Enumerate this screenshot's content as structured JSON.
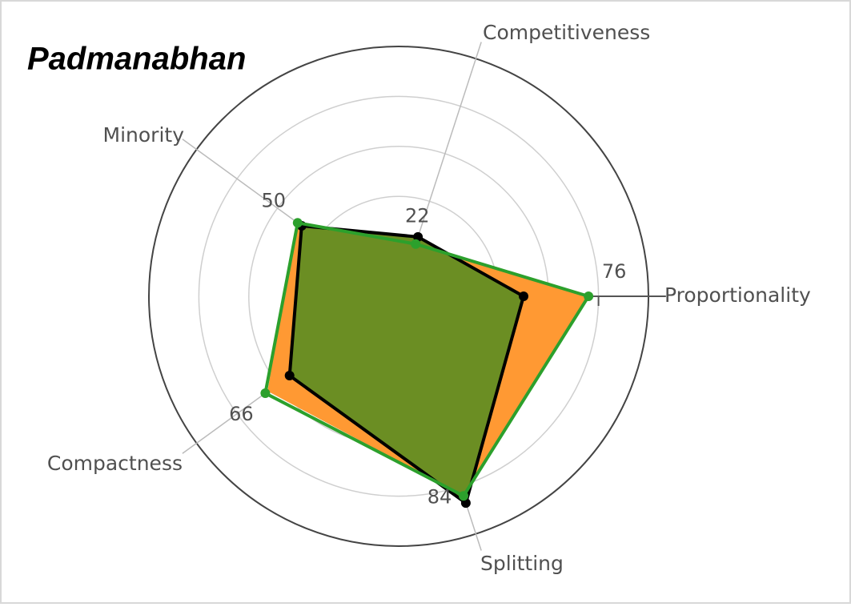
{
  "chart_data": {
    "type": "radar",
    "title": "Padmanabhan",
    "categories": [
      "Proportionality",
      "Competitiveness",
      "Minority",
      "Compactness",
      "Splitting"
    ],
    "rlim": [
      0,
      100
    ],
    "rticks": [
      20,
      40,
      60,
      80
    ],
    "grid": true,
    "series": [
      {
        "color": "#ff9933",
        "fill": "#ff9933",
        "values": [
          75,
          21,
          50,
          64,
          83
        ]
      },
      {
        "color": "#000000",
        "fill": "#6b8e23",
        "values": [
          50,
          25,
          48,
          54,
          87
        ]
      },
      {
        "color": "#2ca02c",
        "fill": "none",
        "values": [
          76,
          22,
          50,
          66,
          84
        ],
        "labels": true
      }
    ]
  }
}
